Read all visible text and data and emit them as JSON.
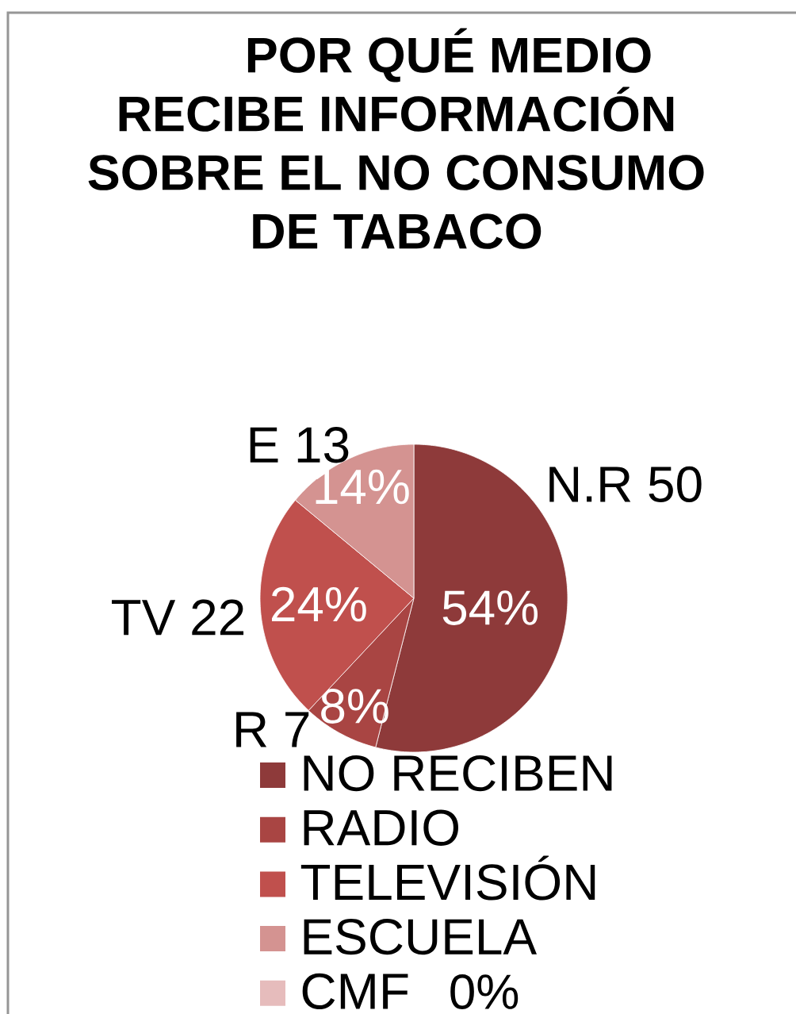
{
  "chart_data": {
    "type": "pie",
    "title": "POR QUÉ MEDIO RECIBE INFORMACIÓN SOBRE EL NO CONSUMO DE TABACO",
    "categories": [
      "NO RECIBEN",
      "RADIO",
      "TELEVISIÓN",
      "ESCUELA",
      "CMF"
    ],
    "values": [
      54,
      8,
      24,
      14,
      0
    ],
    "colors": [
      "#8e3a3a",
      "#a94543",
      "#c0504d",
      "#d49391",
      "#e6bcbc"
    ],
    "value_labels": [
      "54%",
      "8%",
      "24%",
      "14%",
      "0%"
    ],
    "annotations": [
      "N.R 50",
      "R 7",
      "TV 22",
      "E 13"
    ],
    "legend": "bottom"
  }
}
